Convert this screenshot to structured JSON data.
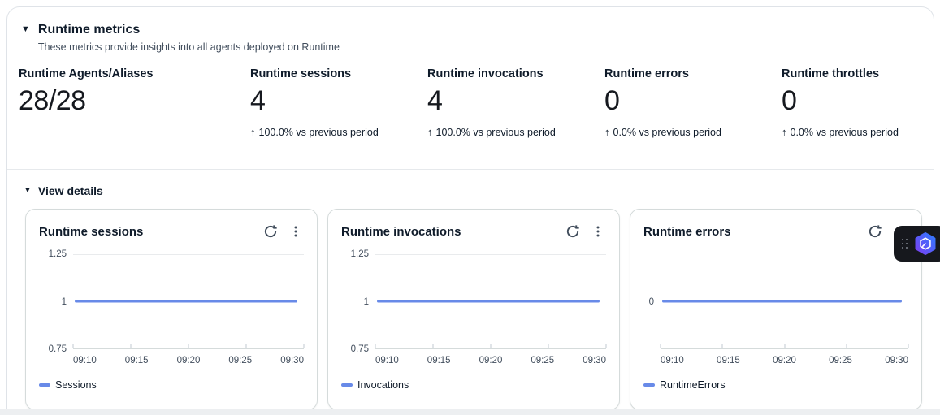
{
  "colors": {
    "series_blue": "#688AE8",
    "text_primary": "#0f1b2a",
    "text_secondary": "#414d5c",
    "gridline": "#e9ebed",
    "widget_bg": "#16181d"
  },
  "panel": {
    "collapse_icon": "▼",
    "title": "Runtime metrics",
    "subtitle": "These metrics provide insights into all agents deployed on Runtime"
  },
  "metrics": [
    {
      "label": "Runtime Agents/Aliases",
      "value": "28/28",
      "trend_arrow": null,
      "trend": null
    },
    {
      "label": "Runtime sessions",
      "value": "4",
      "trend_arrow": "↑",
      "trend": "100.0% vs previous period"
    },
    {
      "label": "Runtime invocations",
      "value": "4",
      "trend_arrow": "↑",
      "trend": "100.0% vs previous period"
    },
    {
      "label": "Runtime errors",
      "value": "0",
      "trend_arrow": "↑",
      "trend": "0.0% vs previous period"
    },
    {
      "label": "Runtime throttles",
      "value": "0",
      "trend_arrow": "↑",
      "trend": "0.0% vs previous period"
    }
  ],
  "details": {
    "collapse_icon": "▼",
    "label": "View details"
  },
  "chart_data": [
    {
      "type": "line",
      "title": "Runtime sessions",
      "x": [
        "09:10",
        "09:15",
        "09:20",
        "09:25",
        "09:30"
      ],
      "series": [
        {
          "name": "Sessions",
          "values": [
            1,
            1,
            1,
            1,
            1
          ],
          "color": "#688AE8"
        }
      ],
      "ylim": [
        0.75,
        1.25
      ],
      "y_ticks": [
        {
          "label": "1.25",
          "pos": 0,
          "grid": true
        },
        {
          "label": "1",
          "pos": 0.5,
          "grid": false
        },
        {
          "label": "0.75",
          "pos": 1,
          "grid": false
        }
      ],
      "series_pos": 0.5,
      "legend": [
        {
          "label": "Sessions",
          "color": "#688AE8"
        }
      ],
      "legend_position": "bottom",
      "grid": "horizontal"
    },
    {
      "type": "line",
      "title": "Runtime invocations",
      "x": [
        "09:10",
        "09:15",
        "09:20",
        "09:25",
        "09:30"
      ],
      "series": [
        {
          "name": "Invocations",
          "values": [
            1,
            1,
            1,
            1,
            1
          ],
          "color": "#688AE8"
        }
      ],
      "ylim": [
        0.75,
        1.25
      ],
      "y_ticks": [
        {
          "label": "1.25",
          "pos": 0,
          "grid": true
        },
        {
          "label": "1",
          "pos": 0.5,
          "grid": false
        },
        {
          "label": "0.75",
          "pos": 1,
          "grid": false
        }
      ],
      "series_pos": 0.5,
      "legend": [
        {
          "label": "Invocations",
          "color": "#688AE8"
        }
      ],
      "legend_position": "bottom",
      "grid": "horizontal"
    },
    {
      "type": "line",
      "title": "Runtime errors",
      "x": [
        "09:10",
        "09:15",
        "09:20",
        "09:25",
        "09:30"
      ],
      "series": [
        {
          "name": "RuntimeErrors",
          "values": [
            0,
            0,
            0,
            0,
            0
          ],
          "color": "#688AE8"
        }
      ],
      "ylim": null,
      "y_ticks": [
        {
          "label": "0",
          "pos": 0.5,
          "grid": false
        }
      ],
      "series_pos": 0.5,
      "legend": [
        {
          "label": "RuntimeErrors",
          "color": "#688AE8"
        }
      ],
      "legend_position": "bottom",
      "grid": "none"
    }
  ]
}
